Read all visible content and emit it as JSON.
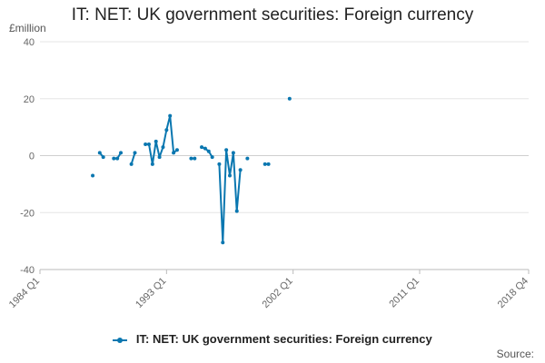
{
  "chart_data": {
    "type": "line",
    "title": "IT: NET: UK government securities: Foreign currency",
    "ylabel": "£million",
    "ylim": [
      -40,
      40
    ],
    "yticks": [
      40,
      20,
      0,
      -20,
      -40
    ],
    "xlim": [
      1984.0,
      2018.75
    ],
    "xticks": [
      {
        "label": "1984 Q1",
        "x": 1984.0
      },
      {
        "label": "1993 Q1",
        "x": 1993.0
      },
      {
        "label": "2002 Q1",
        "x": 2002.0
      },
      {
        "label": "2011 Q1",
        "x": 2011.0
      },
      {
        "label": "2018 Q4",
        "x": 2018.75
      }
    ],
    "grid": true,
    "legend": "bottom",
    "color": "#0a77b0",
    "series": [
      {
        "name": "IT: NET: UK government securities: Foreign currency",
        "segments": [
          [
            [
              1987.75,
              -7
            ]
          ],
          [
            [
              1988.25,
              1
            ],
            [
              1988.5,
              -0.5
            ]
          ],
          [
            [
              1989.25,
              -1
            ],
            [
              1989.5,
              -1
            ],
            [
              1989.75,
              1
            ]
          ],
          [
            [
              1990.5,
              -3
            ],
            [
              1990.75,
              1
            ]
          ],
          [
            [
              1991.5,
              4
            ],
            [
              1991.75,
              4
            ],
            [
              1992.0,
              -3
            ],
            [
              1992.25,
              5
            ],
            [
              1992.5,
              -0.5
            ],
            [
              1992.75,
              3
            ],
            [
              1993.0,
              9
            ],
            [
              1993.25,
              14
            ],
            [
              1993.5,
              1
            ],
            [
              1993.75,
              2
            ]
          ],
          [
            [
              1994.75,
              -1
            ],
            [
              1995.0,
              -1
            ]
          ],
          [
            [
              1995.5,
              3
            ],
            [
              1995.75,
              2.5
            ],
            [
              1996.0,
              1.5
            ],
            [
              1996.25,
              -0.5
            ]
          ],
          [
            [
              1996.75,
              -3
            ],
            [
              1997.0,
              -30.5
            ],
            [
              1997.25,
              2
            ],
            [
              1997.5,
              -7
            ],
            [
              1997.75,
              1
            ],
            [
              1998.0,
              -19.5
            ],
            [
              1998.25,
              -5
            ]
          ],
          [
            [
              1998.75,
              -1
            ]
          ],
          [
            [
              2000.0,
              -3
            ],
            [
              2000.25,
              -3
            ]
          ],
          [
            [
              2001.75,
              20
            ]
          ]
        ]
      }
    ]
  },
  "source_label": "Source:"
}
